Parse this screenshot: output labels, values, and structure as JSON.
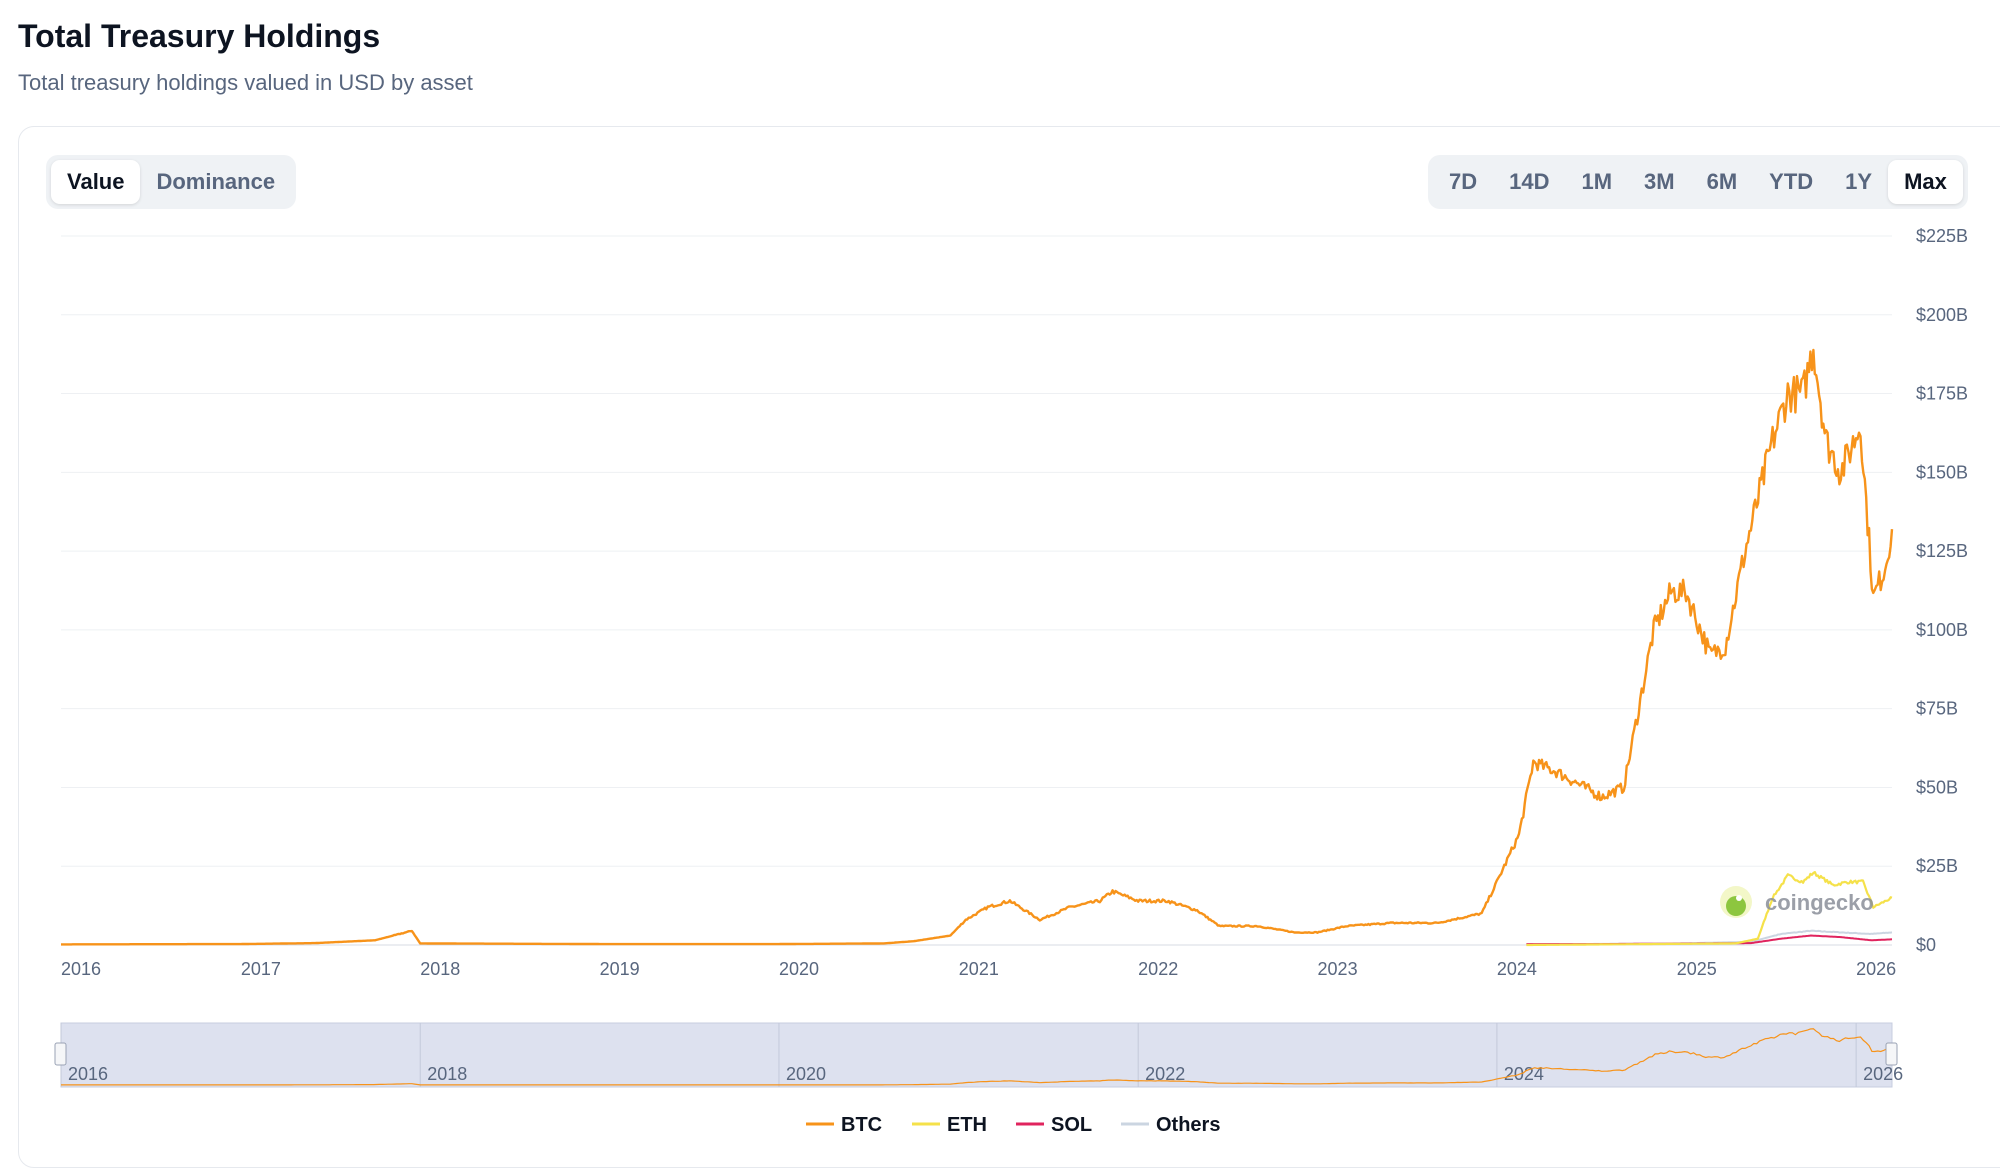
{
  "header": {
    "title": "Total Treasury Holdings",
    "subtitle": "Total treasury holdings valued in USD by asset"
  },
  "view_toggle": {
    "options": [
      "Value",
      "Dominance"
    ],
    "selected": "Value"
  },
  "range_toggle": {
    "options": [
      "7D",
      "14D",
      "1M",
      "3M",
      "6M",
      "YTD",
      "1Y",
      "Max"
    ],
    "selected": "Max"
  },
  "watermark": "coingecko",
  "colors": {
    "BTC": "#f7931a",
    "ETH": "#f5e14a",
    "SOL": "#e0245e",
    "Others": "#cbd5e1",
    "navigator_fill": "#dde1ef"
  },
  "chart_data": {
    "type": "line",
    "title": "",
    "xlabel": "",
    "ylabel": "",
    "x_ticks": [
      "2016",
      "2017",
      "2018",
      "2019",
      "2020",
      "2021",
      "2022",
      "2023",
      "2024",
      "2025",
      "2026"
    ],
    "y_ticks": [
      "$0",
      "$25B",
      "$50B",
      "$75B",
      "$100B",
      "$125B",
      "$150B",
      "$175B",
      "$200B",
      "$225B"
    ],
    "xlim": [
      "2016-01-01",
      "2026-03-15"
    ],
    "ylim": [
      0,
      225
    ],
    "y_unit": "USD billions",
    "legend_position": "bottom",
    "navigator_ticks": [
      "2016",
      "2018",
      "2020",
      "2022",
      "2024",
      "2026"
    ],
    "series": [
      {
        "name": "BTC",
        "color": "#f7931a",
        "points": [
          [
            "2016-01-01",
            0.2
          ],
          [
            "2017-01-01",
            0.3
          ],
          [
            "2017-06-01",
            0.6
          ],
          [
            "2017-10-01",
            1.5
          ],
          [
            "2017-12-15",
            4.5
          ],
          [
            "2018-01-01",
            0.5
          ],
          [
            "2019-01-01",
            0.3
          ],
          [
            "2020-01-01",
            0.3
          ],
          [
            "2020-08-01",
            0.5
          ],
          [
            "2020-10-01",
            1.2
          ],
          [
            "2020-12-15",
            3
          ],
          [
            "2021-01-15",
            8
          ],
          [
            "2021-03-01",
            12
          ],
          [
            "2021-04-15",
            14
          ],
          [
            "2021-06-15",
            8
          ],
          [
            "2021-08-15",
            12
          ],
          [
            "2021-10-15",
            14
          ],
          [
            "2021-11-10",
            17
          ],
          [
            "2022-01-01",
            14
          ],
          [
            "2022-03-01",
            14
          ],
          [
            "2022-05-01",
            11
          ],
          [
            "2022-06-15",
            6
          ],
          [
            "2022-09-01",
            6
          ],
          [
            "2022-11-15",
            4
          ],
          [
            "2023-01-01",
            4
          ],
          [
            "2023-03-01",
            6
          ],
          [
            "2023-06-01",
            7
          ],
          [
            "2023-09-01",
            7
          ],
          [
            "2023-12-01",
            10
          ],
          [
            "2024-01-01",
            20
          ],
          [
            "2024-02-15",
            35
          ],
          [
            "2024-03-15",
            58
          ],
          [
            "2024-05-01",
            55
          ],
          [
            "2024-08-01",
            47
          ],
          [
            "2024-09-15",
            50
          ],
          [
            "2024-11-15",
            100
          ],
          [
            "2024-12-20",
            112
          ],
          [
            "2025-01-20",
            112
          ],
          [
            "2025-03-10",
            92
          ],
          [
            "2025-04-10",
            95
          ],
          [
            "2025-05-20",
            125
          ],
          [
            "2025-07-15",
            160
          ],
          [
            "2025-08-15",
            175
          ],
          [
            "2025-09-15",
            175
          ],
          [
            "2025-10-06",
            190
          ],
          [
            "2025-11-01",
            160
          ],
          [
            "2025-12-01",
            150
          ],
          [
            "2026-01-10",
            165
          ],
          [
            "2026-02-05",
            110
          ],
          [
            "2026-03-01",
            120
          ],
          [
            "2026-03-15",
            132
          ]
        ]
      },
      {
        "name": "ETH",
        "color": "#f5e14a",
        "points": [
          [
            "2024-03-01",
            0
          ],
          [
            "2025-05-01",
            0.5
          ],
          [
            "2025-06-15",
            2
          ],
          [
            "2025-07-15",
            15
          ],
          [
            "2025-08-15",
            22
          ],
          [
            "2025-09-15",
            20
          ],
          [
            "2025-10-06",
            23
          ],
          [
            "2025-11-15",
            19
          ],
          [
            "2025-12-15",
            20
          ],
          [
            "2026-01-15",
            20
          ],
          [
            "2026-02-05",
            12
          ],
          [
            "2026-03-15",
            15
          ]
        ]
      },
      {
        "name": "SOL",
        "color": "#e0245e",
        "points": [
          [
            "2024-03-01",
            0.3
          ],
          [
            "2024-08-01",
            0.3
          ],
          [
            "2025-06-01",
            0.6
          ],
          [
            "2025-08-01",
            2
          ],
          [
            "2025-10-01",
            3
          ],
          [
            "2025-12-01",
            2.5
          ],
          [
            "2026-02-01",
            1.5
          ],
          [
            "2026-03-15",
            1.8
          ]
        ]
      },
      {
        "name": "Others",
        "color": "#cbd5e1",
        "points": [
          [
            "2024-03-01",
            0.2
          ],
          [
            "2025-01-01",
            0.5
          ],
          [
            "2025-06-01",
            1
          ],
          [
            "2025-08-01",
            3.5
          ],
          [
            "2025-10-01",
            4.5
          ],
          [
            "2025-12-01",
            4
          ],
          [
            "2026-02-01",
            3.5
          ],
          [
            "2026-03-15",
            4
          ]
        ]
      }
    ]
  }
}
